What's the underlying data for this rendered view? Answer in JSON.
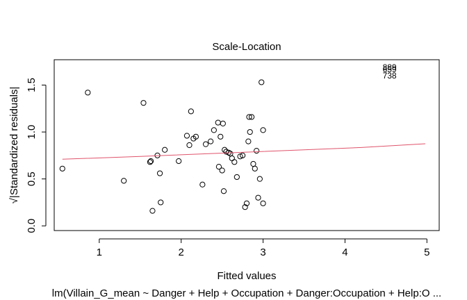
{
  "chart_data": {
    "type": "scatter",
    "title": "Scale-Location",
    "xlabel": "Fitted values",
    "ylabel": "√|Standardized residuals|",
    "subtitle": "lm(Villain_G_mean ~ Danger + Help + Occupation + Danger:Occupation + Help:O ...",
    "xlim": [
      0.45,
      5.15
    ],
    "ylim": [
      -0.05,
      1.77
    ],
    "xticks": [
      1,
      2,
      3,
      4,
      5
    ],
    "yticks": [
      0.0,
      0.5,
      1.0,
      1.5
    ],
    "xtick_labels": [
      "1",
      "2",
      "3",
      "4",
      "5"
    ],
    "ytick_labels": [
      "0.0",
      "0.5",
      "1.0",
      "1.5"
    ],
    "grid": false,
    "legend": "none",
    "marker": "open-circle",
    "point_color": "#000000",
    "smoother": {
      "name": "lowess",
      "color": "#DF536B",
      "x": [
        0.55,
        1.5,
        2.5,
        3.5,
        4.2,
        4.98
      ],
      "y": [
        0.71,
        0.74,
        0.775,
        0.81,
        0.835,
        0.875
      ]
    },
    "labeled_points": [
      {
        "label": "889",
        "x": 4.68,
        "y": 1.69
      },
      {
        "label": "659",
        "x": 4.68,
        "y": 1.665
      },
      {
        "label": "738",
        "x": 4.68,
        "y": 1.6
      }
    ],
    "points": [
      [
        0.55,
        0.61
      ],
      [
        0.86,
        1.42
      ],
      [
        1.3,
        0.48
      ],
      [
        1.54,
        1.31
      ],
      [
        1.62,
        0.68
      ],
      [
        1.63,
        0.69
      ],
      [
        1.65,
        0.16
      ],
      [
        1.71,
        0.75
      ],
      [
        1.74,
        0.56
      ],
      [
        1.75,
        0.25
      ],
      [
        1.8,
        0.81
      ],
      [
        1.97,
        0.69
      ],
      [
        2.07,
        0.96
      ],
      [
        2.1,
        0.86
      ],
      [
        2.12,
        1.22
      ],
      [
        2.15,
        0.93
      ],
      [
        2.18,
        0.95
      ],
      [
        2.26,
        0.44
      ],
      [
        2.3,
        0.87
      ],
      [
        2.36,
        0.9
      ],
      [
        2.4,
        1.02
      ],
      [
        2.45,
        1.1
      ],
      [
        2.46,
        0.63
      ],
      [
        2.48,
        0.95
      ],
      [
        2.5,
        0.59
      ],
      [
        2.51,
        1.09
      ],
      [
        2.52,
        0.37
      ],
      [
        2.53,
        0.81
      ],
      [
        2.55,
        0.79
      ],
      [
        2.58,
        0.78
      ],
      [
        2.6,
        0.77
      ],
      [
        2.62,
        0.72
      ],
      [
        2.65,
        0.68
      ],
      [
        2.68,
        0.52
      ],
      [
        2.72,
        0.74
      ],
      [
        2.75,
        0.75
      ],
      [
        2.78,
        0.2
      ],
      [
        2.8,
        0.24
      ],
      [
        2.82,
        0.9
      ],
      [
        2.83,
        1.16
      ],
      [
        2.84,
        1.0
      ],
      [
        2.86,
        1.16
      ],
      [
        2.88,
        0.66
      ],
      [
        2.9,
        0.61
      ],
      [
        2.92,
        0.8
      ],
      [
        2.94,
        0.3
      ],
      [
        2.96,
        0.5
      ],
      [
        2.98,
        1.53
      ],
      [
        3.0,
        1.02
      ],
      [
        3.0,
        0.24
      ]
    ]
  }
}
